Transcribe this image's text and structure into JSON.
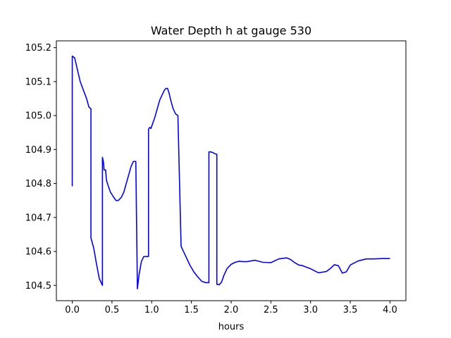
{
  "chart_data": {
    "type": "line",
    "title": "Water Depth h at gauge 530",
    "xlabel": "hours",
    "ylabel": "",
    "xlim": [
      -0.2,
      4.2
    ],
    "ylim": [
      104.455,
      105.22
    ],
    "xticks": [
      0.0,
      0.5,
      1.0,
      1.5,
      2.0,
      2.5,
      3.0,
      3.5,
      4.0
    ],
    "xtick_labels": [
      "0.0",
      "0.5",
      "1.0",
      "1.5",
      "2.0",
      "2.5",
      "3.0",
      "3.5",
      "4.0"
    ],
    "yticks": [
      104.5,
      104.6,
      104.7,
      104.8,
      104.9,
      105.0,
      105.1,
      105.2
    ],
    "ytick_labels": [
      "104.5",
      "104.6",
      "104.7",
      "104.8",
      "104.9",
      "105.0",
      "105.1",
      "105.2"
    ],
    "grid": false,
    "series": [
      {
        "color": "#0000ff",
        "x": [
          0.0,
          0.0,
          0.03,
          0.06,
          0.1,
          0.14,
          0.18,
          0.21,
          0.235,
          0.235,
          0.27,
          0.3,
          0.34,
          0.38,
          0.38,
          0.395,
          0.4,
          0.41,
          0.42,
          0.43,
          0.45,
          0.48,
          0.52,
          0.55,
          0.58,
          0.6,
          0.62,
          0.65,
          0.68,
          0.71,
          0.74,
          0.77,
          0.8,
          0.82,
          0.82,
          0.84,
          0.87,
          0.9,
          0.93,
          0.96,
          0.96,
          0.975,
          0.99,
          1.01,
          1.04,
          1.07,
          1.1,
          1.13,
          1.16,
          1.18,
          1.2,
          1.22,
          1.24,
          1.27,
          1.3,
          1.33,
          1.37,
          1.37,
          1.4,
          1.44,
          1.48,
          1.53,
          1.58,
          1.63,
          1.68,
          1.72,
          1.72,
          1.74,
          1.76,
          1.78,
          1.79,
          1.82,
          1.82,
          1.85,
          1.88,
          1.91,
          1.95,
          2.0,
          2.05,
          2.1,
          2.15,
          2.2,
          2.3,
          2.4,
          2.5,
          2.6,
          2.7,
          2.75,
          2.8,
          2.85,
          2.9,
          3.0,
          3.1,
          3.2,
          3.25,
          3.3,
          3.35,
          3.4,
          3.45,
          3.5,
          3.6,
          3.7,
          3.8,
          3.9,
          4.0
        ],
        "y": [
          104.792,
          105.175,
          105.17,
          105.14,
          105.1,
          105.075,
          105.05,
          105.025,
          105.02,
          104.64,
          104.61,
          104.57,
          104.52,
          104.5,
          104.877,
          104.86,
          104.84,
          104.84,
          104.84,
          104.81,
          104.795,
          104.775,
          104.76,
          104.75,
          104.75,
          104.755,
          104.76,
          104.775,
          104.8,
          104.825,
          104.85,
          104.865,
          104.865,
          104.49,
          104.49,
          104.53,
          104.57,
          104.585,
          104.585,
          104.585,
          104.96,
          104.965,
          104.962,
          104.975,
          104.995,
          105.02,
          105.045,
          105.06,
          105.075,
          105.08,
          105.08,
          105.065,
          105.045,
          105.02,
          105.005,
          105.0,
          104.615,
          104.615,
          104.6,
          104.58,
          104.56,
          104.54,
          104.525,
          104.512,
          104.508,
          104.508,
          104.893,
          104.893,
          104.892,
          104.89,
          104.888,
          104.886,
          104.503,
          104.502,
          104.51,
          104.53,
          104.55,
          104.562,
          104.568,
          104.571,
          104.57,
          104.57,
          104.574,
          104.568,
          104.567,
          104.578,
          104.581,
          104.576,
          104.567,
          104.56,
          104.558,
          104.549,
          104.537,
          104.541,
          104.55,
          104.561,
          104.558,
          104.536,
          104.54,
          104.56,
          104.572,
          104.578,
          104.578,
          104.579,
          104.579
        ]
      }
    ]
  }
}
